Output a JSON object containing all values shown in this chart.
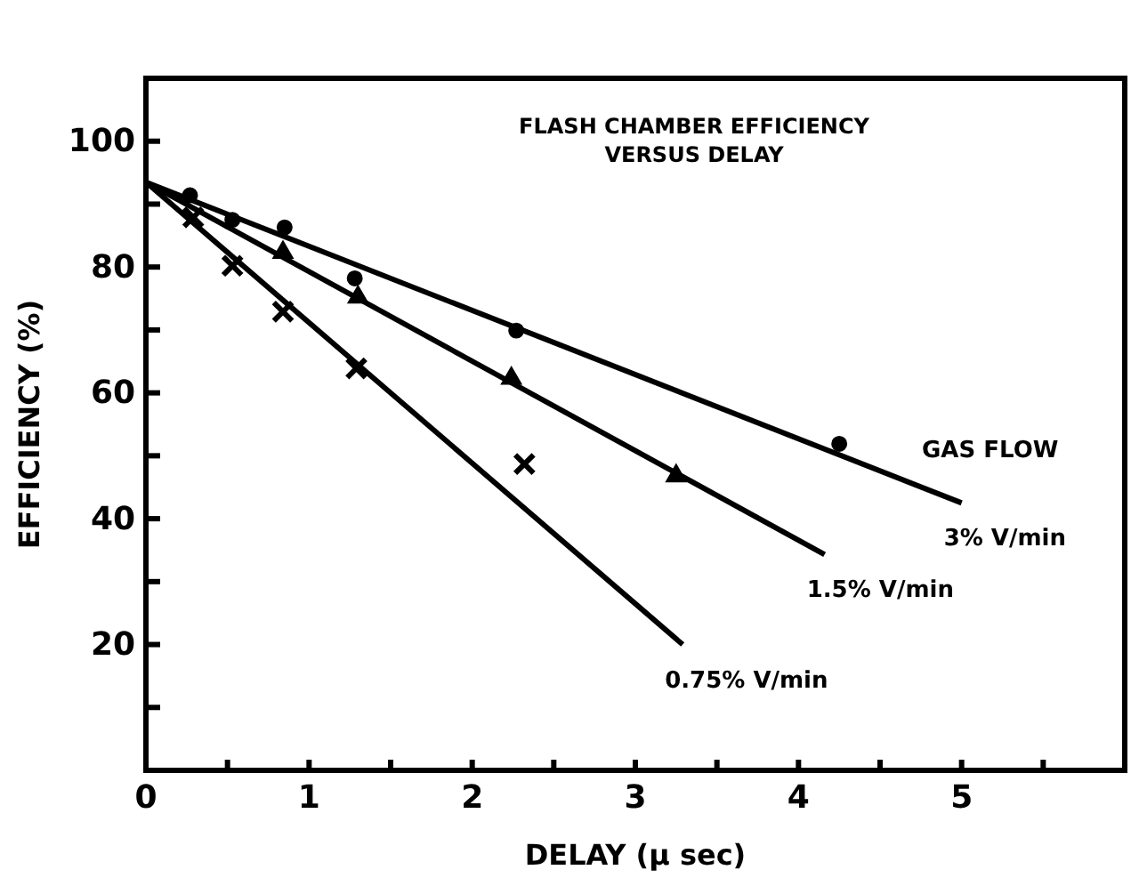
{
  "chart_data": {
    "type": "scatter",
    "title": "FLASH CHAMBER EFFICIENCY\nVERSUS DELAY",
    "xlabel": "DELAY (μ sec)",
    "ylabel": "EFFICIENCY (%)",
    "xlim": [
      0,
      6
    ],
    "ylim": [
      0,
      110
    ],
    "xticks": [
      0,
      {
        "value": 0.5,
        "label": null
      },
      1,
      {
        "value": 1.5,
        "label": null
      },
      2,
      {
        "value": 2.5,
        "label": null
      },
      3,
      {
        "value": 3.5,
        "label": null
      },
      4,
      {
        "value": 4.5,
        "label": null
      },
      5,
      {
        "value": 5.5,
        "label": null
      }
    ],
    "yticks": [
      {
        "value": 10,
        "label": null
      },
      20,
      {
        "value": 30,
        "label": null
      },
      40,
      {
        "value": 50,
        "label": null
      },
      60,
      {
        "value": 70,
        "label": null
      },
      80,
      {
        "value": 90,
        "label": null
      },
      100
    ],
    "grid": false,
    "annotations": [
      "GAS FLOW"
    ],
    "series": [
      {
        "marker": "circle",
        "color": "#000000",
        "x": [
          0.27,
          0.53,
          0.85,
          1.28,
          2.27,
          4.25
        ],
        "values": [
          91.4,
          87.5,
          86.3,
          78.2,
          69.9,
          51.9
        ]
      },
      {
        "marker": "triangle",
        "color": "#000000",
        "x": [
          0.84,
          1.3,
          2.24,
          3.25
        ],
        "values": [
          82.3,
          75.2,
          62.3,
          46.8
        ]
      },
      {
        "marker": "cross",
        "color": "#000000",
        "x": [
          0.29,
          0.53,
          0.84,
          1.29,
          2.32
        ],
        "values": [
          87.9,
          80.2,
          72.9,
          63.9,
          48.7
        ]
      },
      {
        "type": "line",
        "name": "3% V/min",
        "color": "#000000",
        "x": [
          0,
          5
        ],
        "values": [
          93.5,
          42.5
        ]
      },
      {
        "type": "line",
        "name": "1.5% V/min",
        "color": "#000000",
        "x": [
          0,
          4.16
        ],
        "values": [
          93.5,
          34.3
        ]
      },
      {
        "type": "line",
        "name": "0.75% V/min",
        "color": "#000000",
        "x": [
          0,
          3.29
        ],
        "values": [
          93.5,
          20
        ]
      }
    ]
  }
}
